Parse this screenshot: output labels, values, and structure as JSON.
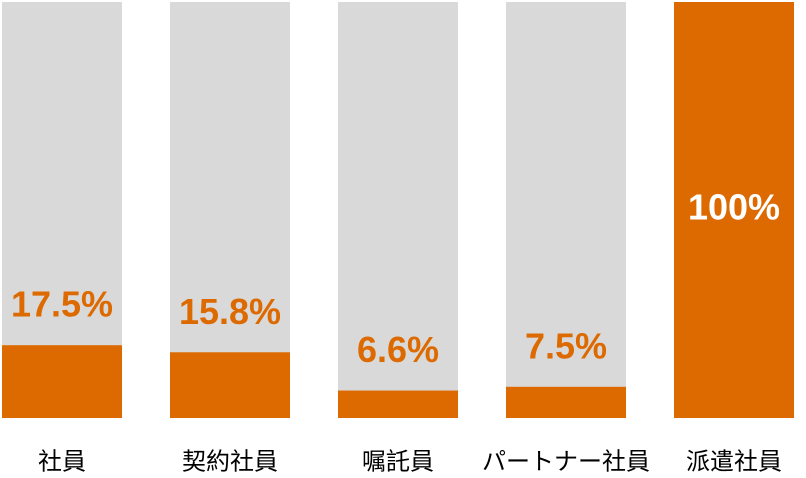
{
  "chart_data": {
    "type": "bar",
    "categories": [
      "社員",
      "契約社員",
      "嘱託員",
      "パートナー社員",
      "派遣社員"
    ],
    "values": [
      17.5,
      15.8,
      6.6,
      7.5,
      100
    ],
    "value_labels": [
      "17.5%",
      "15.8%",
      "6.6%",
      "7.5%",
      "100%"
    ],
    "color": "#dc6a00",
    "background_color": "#d9d9d9",
    "ylim": [
      0,
      100
    ]
  }
}
